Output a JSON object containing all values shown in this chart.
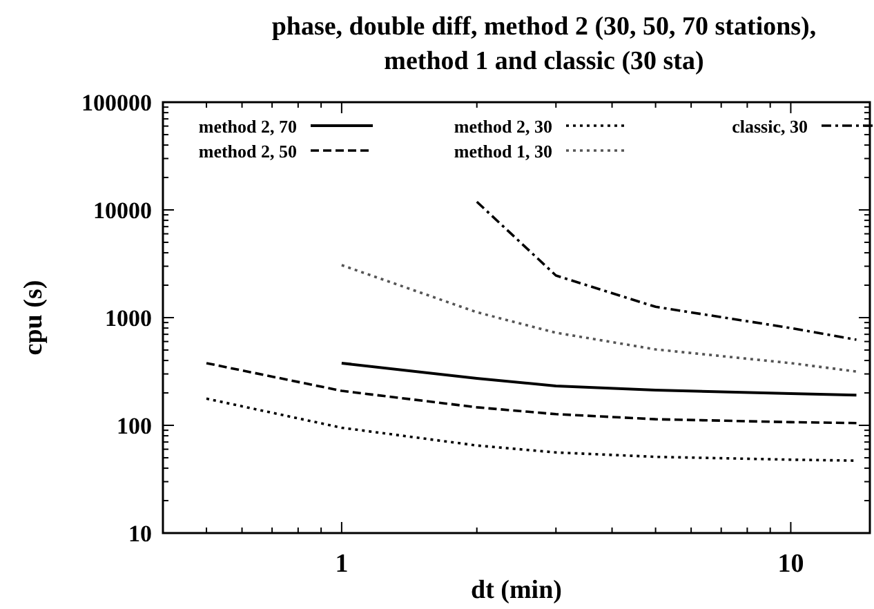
{
  "chart_data": {
    "type": "line",
    "title": "phase, double diff, method 2 (30, 50, 70 stations), method 1 and classic (30 sta)",
    "xlabel": "dt (min)",
    "ylabel": "cpu (s)",
    "log": "xy",
    "grid": false,
    "legend": "top",
    "marker": "none",
    "xlim": [
      0.4,
      15
    ],
    "ylim": [
      10,
      100000
    ],
    "xticks": [
      {
        "value": 0.5,
        "label": null
      },
      {
        "value": 0.6,
        "label": null
      },
      {
        "value": 0.7,
        "label": null
      },
      {
        "value": 0.8,
        "label": null
      },
      {
        "value": 0.9,
        "label": null
      },
      1,
      {
        "value": 2,
        "label": null
      },
      {
        "value": 3,
        "label": null
      },
      {
        "value": 4,
        "label": null
      },
      {
        "value": 5,
        "label": null
      },
      {
        "value": 6,
        "label": null
      },
      {
        "value": 7,
        "label": null
      },
      {
        "value": 8,
        "label": null
      },
      {
        "value": 9,
        "label": null
      },
      10
    ],
    "yticks": [
      10,
      100,
      1000,
      10000,
      100000
    ],
    "series": [
      {
        "name": "method 2, 70",
        "color": "#000000",
        "line_style": "solid",
        "x": [
          1,
          2,
          3,
          5,
          10,
          14
        ],
        "values": [
          378,
          273,
          232,
          212,
          197,
          191
        ]
      },
      {
        "name": "method 2, 50",
        "color": "#000000",
        "line_style": "dashed",
        "x": [
          0.5,
          1,
          2,
          3,
          5,
          10,
          14
        ],
        "values": [
          378,
          209,
          147,
          127,
          114,
          107,
          105
        ]
      },
      {
        "name": "method 2, 30",
        "color": "#000000",
        "line_style": "dotted",
        "x": [
          0.5,
          1,
          2,
          3,
          5,
          10,
          14
        ],
        "values": [
          177,
          95,
          65,
          56,
          51,
          48,
          47
        ]
      },
      {
        "name": "method 1, 30",
        "color": "#555555",
        "line_style": "dotted",
        "x": [
          1,
          2,
          3,
          5,
          10,
          14
        ],
        "values": [
          3070,
          1122,
          724,
          507,
          378,
          316
        ]
      },
      {
        "name": "classic, 30",
        "color": "#000000",
        "line_style": "dashdot",
        "x": [
          2,
          3,
          5,
          10,
          14
        ],
        "values": [
          11900,
          2460,
          1260,
          800,
          624
        ]
      }
    ]
  }
}
